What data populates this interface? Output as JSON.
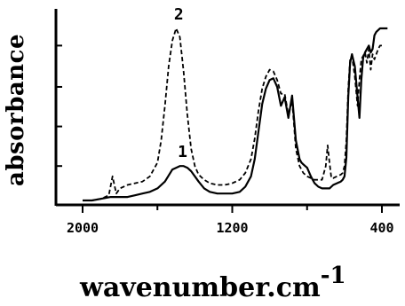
{
  "chart_data": {
    "type": "line",
    "title": "",
    "xlabel": {
      "main": "wavenumber",
      "sep": ".",
      "unit": "cm",
      "exponent": "-1"
    },
    "ylabel": "absorbance",
    "x_reversed": true,
    "xlim": [
      2000,
      400
    ],
    "ylim": [
      0,
      1
    ],
    "x_ticks": [
      2000,
      1200,
      400
    ],
    "y_ticks_labeled": false,
    "grid": false,
    "series": [
      {
        "name": "1",
        "style": "solid",
        "x": [
          2000,
          1950,
          1900,
          1850,
          1800,
          1760,
          1720,
          1680,
          1640,
          1600,
          1560,
          1520,
          1480,
          1460,
          1440,
          1420,
          1400,
          1380,
          1350,
          1320,
          1280,
          1240,
          1200,
          1160,
          1130,
          1100,
          1080,
          1060,
          1040,
          1020,
          1000,
          980,
          960,
          940,
          920,
          900,
          880,
          860,
          840,
          830,
          820,
          810,
          800,
          780,
          760,
          740,
          720,
          700,
          680,
          660,
          640,
          620,
          610,
          600,
          590,
          580,
          570,
          560,
          545,
          530,
          520,
          510,
          500,
          490,
          480,
          470,
          460,
          450,
          440,
          430,
          420,
          410,
          400,
          390,
          380,
          370
        ],
        "y": [
          0.0,
          0.0,
          0.01,
          0.02,
          0.02,
          0.02,
          0.03,
          0.04,
          0.05,
          0.07,
          0.11,
          0.18,
          0.2,
          0.2,
          0.19,
          0.17,
          0.14,
          0.11,
          0.07,
          0.05,
          0.04,
          0.04,
          0.04,
          0.05,
          0.08,
          0.14,
          0.24,
          0.4,
          0.56,
          0.65,
          0.7,
          0.71,
          0.66,
          0.55,
          0.6,
          0.48,
          0.61,
          0.35,
          0.24,
          0.22,
          0.21,
          0.2,
          0.19,
          0.14,
          0.1,
          0.08,
          0.07,
          0.07,
          0.07,
          0.09,
          0.1,
          0.11,
          0.12,
          0.14,
          0.25,
          0.6,
          0.8,
          0.85,
          0.78,
          0.6,
          0.48,
          0.7,
          0.83,
          0.86,
          0.88,
          0.9,
          0.86,
          0.88,
          0.96,
          0.98,
          0.99,
          1.0,
          1.0,
          1.0,
          1.0,
          1.0
        ]
      },
      {
        "name": "2",
        "style": "dashed",
        "x": [
          2000,
          1950,
          1900,
          1860,
          1840,
          1820,
          1800,
          1760,
          1720,
          1680,
          1640,
          1600,
          1580,
          1560,
          1540,
          1520,
          1500,
          1480,
          1460,
          1440,
          1420,
          1400,
          1380,
          1350,
          1320,
          1280,
          1240,
          1200,
          1160,
          1130,
          1100,
          1080,
          1060,
          1040,
          1020,
          1000,
          980,
          960,
          940,
          920,
          900,
          880,
          860,
          840,
          820,
          800,
          780,
          760,
          740,
          720,
          700,
          690,
          680,
          670,
          660,
          640,
          620,
          610,
          600,
          590,
          580,
          570,
          560,
          545,
          530,
          520,
          510,
          500,
          490,
          480,
          470,
          460,
          450,
          440,
          430,
          420,
          410,
          400
        ],
        "y": [
          0.0,
          0.0,
          0.01,
          0.03,
          0.14,
          0.04,
          0.07,
          0.09,
          0.1,
          0.11,
          0.14,
          0.22,
          0.35,
          0.55,
          0.78,
          0.93,
          1.0,
          0.95,
          0.75,
          0.5,
          0.3,
          0.2,
          0.15,
          0.12,
          0.1,
          0.09,
          0.09,
          0.1,
          0.12,
          0.16,
          0.24,
          0.36,
          0.52,
          0.65,
          0.72,
          0.76,
          0.75,
          0.7,
          0.62,
          0.62,
          0.5,
          0.58,
          0.3,
          0.2,
          0.16,
          0.14,
          0.13,
          0.12,
          0.12,
          0.12,
          0.2,
          0.32,
          0.22,
          0.13,
          0.13,
          0.14,
          0.15,
          0.16,
          0.2,
          0.35,
          0.65,
          0.82,
          0.84,
          0.72,
          0.55,
          0.7,
          0.82,
          0.84,
          0.86,
          0.8,
          0.88,
          0.76,
          0.85,
          0.82,
          0.85,
          0.88,
          0.9,
          0.9
        ]
      }
    ]
  }
}
